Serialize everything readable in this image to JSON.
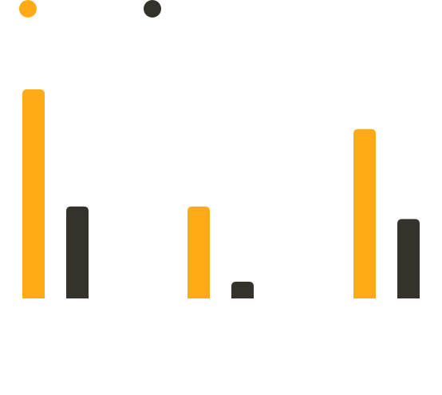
{
  "chart_data": {
    "type": "bar",
    "categories": [
      "",
      "",
      ""
    ],
    "series": [
      {
        "color": "#FFAB16",
        "values": [
          100,
          44,
          81
        ]
      },
      {
        "color": "#35322B",
        "values": [
          44,
          8,
          38
        ]
      }
    ],
    "ylim": [
      0,
      100
    ],
    "grid": false,
    "legend": {
      "position": "top-left",
      "marker": "circle"
    },
    "rounded_top": true
  }
}
